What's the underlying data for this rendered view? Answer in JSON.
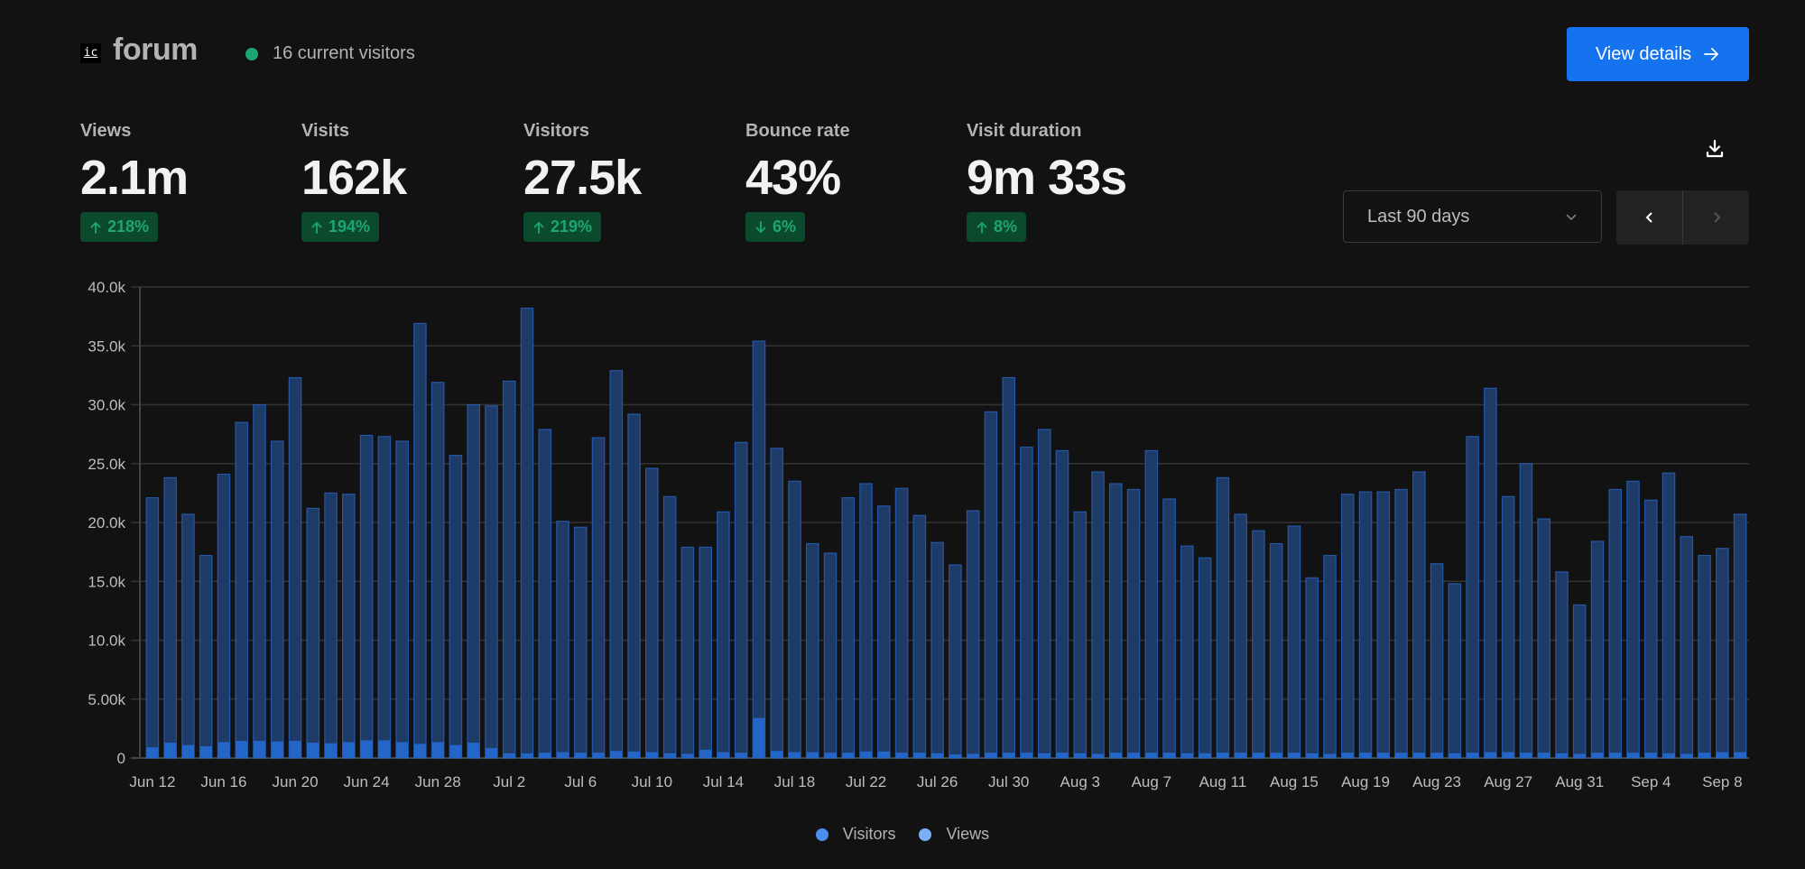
{
  "header": {
    "logo_text": "ic",
    "site_name": "forum",
    "live_visitors": "16 current visitors",
    "view_details_label": "View details"
  },
  "metrics": [
    {
      "label": "Views",
      "value": "2.1m",
      "change": "218%",
      "direction": "up"
    },
    {
      "label": "Visits",
      "value": "162k",
      "change": "194%",
      "direction": "up"
    },
    {
      "label": "Visitors",
      "value": "27.5k",
      "change": "219%",
      "direction": "up"
    },
    {
      "label": "Bounce rate",
      "value": "43%",
      "change": "6%",
      "direction": "down"
    },
    {
      "label": "Visit duration",
      "value": "9m 33s",
      "change": "8%",
      "direction": "up"
    }
  ],
  "controls": {
    "range_selected": "Last 90 days",
    "icons": [
      "download-icon",
      "chevron-down-icon",
      "chevron-left-icon",
      "chevron-right-icon"
    ]
  },
  "colors": {
    "accent": "#1673f0",
    "positive": "#1ea672",
    "views_bar": "#1e3a66",
    "views_stroke": "#2a6bd1",
    "visitors_bar": "#2466c7"
  },
  "chart_data": {
    "type": "bar",
    "title": "",
    "xlabel": "",
    "ylabel": "",
    "ylim": [
      0,
      40000
    ],
    "yticks": [
      "0",
      "5.00k",
      "10.0k",
      "15.0k",
      "20.0k",
      "25.0k",
      "30.0k",
      "35.0k",
      "40.0k"
    ],
    "xtick_labels": [
      "Jun 12",
      "Jun 16",
      "Jun 20",
      "Jun 24",
      "Jun 28",
      "Jul 2",
      "Jul 6",
      "Jul 10",
      "Jul 14",
      "Jul 18",
      "Jul 22",
      "Jul 26",
      "Jul 30",
      "Aug 3",
      "Aug 7",
      "Aug 11",
      "Aug 15",
      "Aug 19",
      "Aug 23",
      "Aug 27",
      "Aug 31",
      "Sep 4",
      "Sep 8"
    ],
    "xtick_every": 4,
    "start_date": "Jun 12",
    "grid": true,
    "legend": "bottom-center",
    "series": [
      {
        "name": "Visitors",
        "color": "#4a8ef0",
        "values": [
          900,
          1300,
          1100,
          1000,
          1350,
          1450,
          1450,
          1400,
          1450,
          1300,
          1250,
          1350,
          1500,
          1500,
          1350,
          1200,
          1350,
          1100,
          1300,
          850,
          400,
          400,
          450,
          500,
          450,
          450,
          600,
          550,
          500,
          400,
          350,
          700,
          500,
          450,
          3400,
          600,
          500,
          500,
          450,
          450,
          550,
          550,
          450,
          450,
          400,
          300,
          350,
          450,
          450,
          450,
          400,
          450,
          400,
          350,
          450,
          450,
          450,
          450,
          400,
          400,
          450,
          450,
          450,
          450,
          450,
          400,
          350,
          450,
          450,
          450,
          450,
          450,
          450,
          400,
          450,
          500,
          500,
          450,
          450,
          400,
          350,
          450,
          450,
          450,
          450,
          400,
          350,
          450,
          500,
          500
        ]
      },
      {
        "name": "Views",
        "color": "#7ab0f5",
        "values": [
          22100,
          23800,
          20700,
          17200,
          24100,
          28500,
          30000,
          26900,
          32300,
          21200,
          22500,
          22400,
          27400,
          27300,
          26900,
          36900,
          31900,
          25700,
          30000,
          29900,
          32000,
          38200,
          27900,
          20100,
          19600,
          27200,
          32900,
          29200,
          24600,
          22200,
          17900,
          17900,
          20900,
          26800,
          35400,
          26300,
          23500,
          18200,
          17400,
          22100,
          23300,
          21400,
          22900,
          20600,
          18300,
          16400,
          21000,
          29400,
          32300,
          26400,
          27900,
          26100,
          20900,
          24300,
          23300,
          22800,
          26100,
          22000,
          18000,
          17000,
          23800,
          20700,
          19300,
          18200,
          19700,
          15300,
          17200,
          22400,
          22600,
          22600,
          22800,
          24300,
          16500,
          14800,
          27300,
          31400,
          22200,
          25000,
          20300,
          15800,
          13000,
          18400,
          22800,
          23500,
          21900,
          24200,
          18800,
          17200,
          17800,
          20700
        ]
      }
    ]
  },
  "legend": [
    {
      "label": "Visitors",
      "color": "#4a8ef0"
    },
    {
      "label": "Views",
      "color": "#7ab0f5"
    }
  ]
}
